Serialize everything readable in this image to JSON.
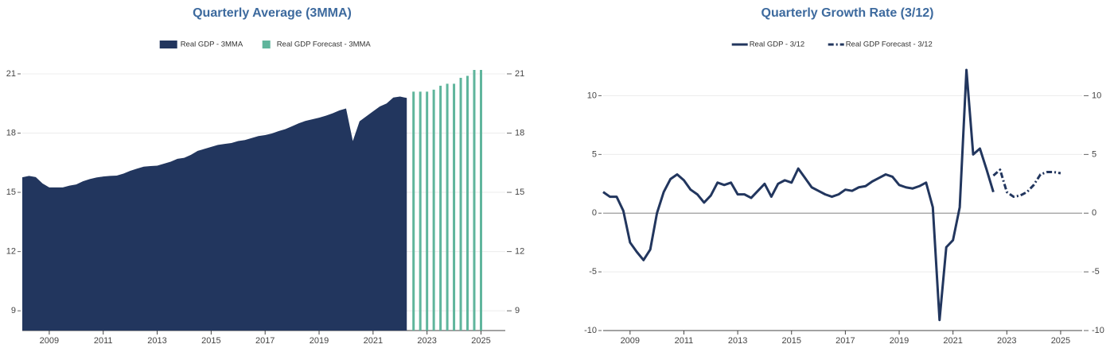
{
  "chart_data": [
    {
      "type": "area",
      "title": "Quarterly Average (3MMA)",
      "xlim": [
        2008,
        2025.9
      ],
      "xticks": [
        2009,
        2011,
        2013,
        2015,
        2017,
        2019,
        2021,
        2023,
        2025
      ],
      "ylim": [
        8,
        21.2
      ],
      "yticks": [
        9,
        12,
        15,
        18,
        21
      ],
      "grid": true,
      "series": [
        {
          "name": "Real GDP - 3MMA",
          "type": "area",
          "color": "#22365e",
          "x": [
            2008,
            2008.25,
            2008.5,
            2008.75,
            2009,
            2009.25,
            2009.5,
            2009.75,
            2010,
            2010.25,
            2010.5,
            2010.75,
            2011,
            2011.25,
            2011.5,
            2011.75,
            2012,
            2012.25,
            2012.5,
            2012.75,
            2013,
            2013.25,
            2013.5,
            2013.75,
            2014,
            2014.25,
            2014.5,
            2014.75,
            2015,
            2015.25,
            2015.5,
            2015.75,
            2016,
            2016.25,
            2016.5,
            2016.75,
            2017,
            2017.25,
            2017.5,
            2017.75,
            2018,
            2018.25,
            2018.5,
            2018.75,
            2019,
            2019.25,
            2019.5,
            2019.75,
            2020,
            2020.25,
            2020.5,
            2020.75,
            2021,
            2021.25,
            2021.5,
            2021.75,
            2022,
            2022.25
          ],
          "values": [
            15.76,
            15.83,
            15.77,
            15.45,
            15.25,
            15.25,
            15.25,
            15.34,
            15.4,
            15.56,
            15.67,
            15.75,
            15.8,
            15.83,
            15.85,
            15.95,
            16.09,
            16.2,
            16.3,
            16.33,
            16.35,
            16.45,
            16.55,
            16.7,
            16.75,
            16.9,
            17.1,
            17.2,
            17.3,
            17.4,
            17.45,
            17.5,
            17.6,
            17.65,
            17.75,
            17.85,
            17.9,
            17.98,
            18.1,
            18.2,
            18.35,
            18.5,
            18.62,
            18.7,
            18.78,
            18.88,
            19.0,
            19.15,
            19.25,
            17.6,
            18.6,
            18.85,
            19.1,
            19.35,
            19.5,
            19.8,
            19.85,
            19.78
          ]
        },
        {
          "name": "Real GDP Forecast - 3MMA",
          "type": "bar",
          "color": "#5fb59c",
          "x": [
            2022.5,
            2022.75,
            2023,
            2023.25,
            2023.5,
            2023.75,
            2024,
            2024.25,
            2024.5,
            2024.75,
            2025
          ],
          "values": [
            20.1,
            20.1,
            20.1,
            20.2,
            20.4,
            20.5,
            20.5,
            20.8,
            20.9,
            21.2,
            21.2
          ]
        }
      ]
    },
    {
      "type": "line",
      "title": "Quarterly Growth Rate (3/12)",
      "xlim": [
        2008,
        2025.8
      ],
      "xticks": [
        2009,
        2011,
        2013,
        2015,
        2017,
        2019,
        2021,
        2023,
        2025
      ],
      "ylim": [
        -10,
        12.2
      ],
      "yticks": [
        -10,
        -5,
        0,
        5,
        10
      ],
      "grid": true,
      "series": [
        {
          "name": "Real GDP - 3/12",
          "type": "line",
          "color": "#22365e",
          "dash": "solid",
          "x": [
            2008,
            2008.25,
            2008.5,
            2008.75,
            2009,
            2009.25,
            2009.5,
            2009.75,
            2010,
            2010.25,
            2010.5,
            2010.75,
            2011,
            2011.25,
            2011.5,
            2011.75,
            2012,
            2012.25,
            2012.5,
            2012.75,
            2013,
            2013.25,
            2013.5,
            2013.75,
            2014,
            2014.25,
            2014.5,
            2014.75,
            2015,
            2015.25,
            2015.5,
            2015.75,
            2016,
            2016.25,
            2016.5,
            2016.75,
            2017,
            2017.25,
            2017.5,
            2017.75,
            2018,
            2018.25,
            2018.5,
            2018.75,
            2019,
            2019.25,
            2019.5,
            2019.75,
            2020,
            2020.25,
            2020.5,
            2020.75,
            2021,
            2021.25,
            2021.5,
            2021.75,
            2022,
            2022.25,
            2022.5
          ],
          "values": [
            1.8,
            1.4,
            1.4,
            0.2,
            -2.5,
            -3.3,
            -4.0,
            -3.1,
            0.0,
            1.8,
            2.9,
            3.3,
            2.8,
            2.0,
            1.6,
            0.9,
            1.5,
            2.6,
            2.4,
            2.6,
            1.6,
            1.6,
            1.3,
            1.9,
            2.5,
            1.4,
            2.5,
            2.8,
            2.6,
            3.8,
            3.0,
            2.2,
            1.9,
            1.6,
            1.4,
            1.6,
            2.0,
            1.9,
            2.2,
            2.3,
            2.7,
            3.0,
            3.3,
            3.1,
            2.4,
            2.2,
            2.1,
            2.3,
            2.6,
            0.5,
            -9.1,
            -2.9,
            -2.3,
            0.5,
            12.2,
            5.0,
            5.5,
            3.7,
            1.8
          ]
        },
        {
          "name": "Real GDP Forecast - 3/12",
          "type": "line",
          "color": "#22365e",
          "dash": "dashdot",
          "x": [
            2022.5,
            2022.75,
            2023,
            2023.25,
            2023.5,
            2023.75,
            2024,
            2024.25,
            2024.5,
            2024.75,
            2025
          ],
          "values": [
            3.2,
            3.7,
            1.8,
            1.4,
            1.5,
            1.8,
            2.4,
            3.3,
            3.5,
            3.5,
            3.4
          ]
        }
      ]
    }
  ]
}
